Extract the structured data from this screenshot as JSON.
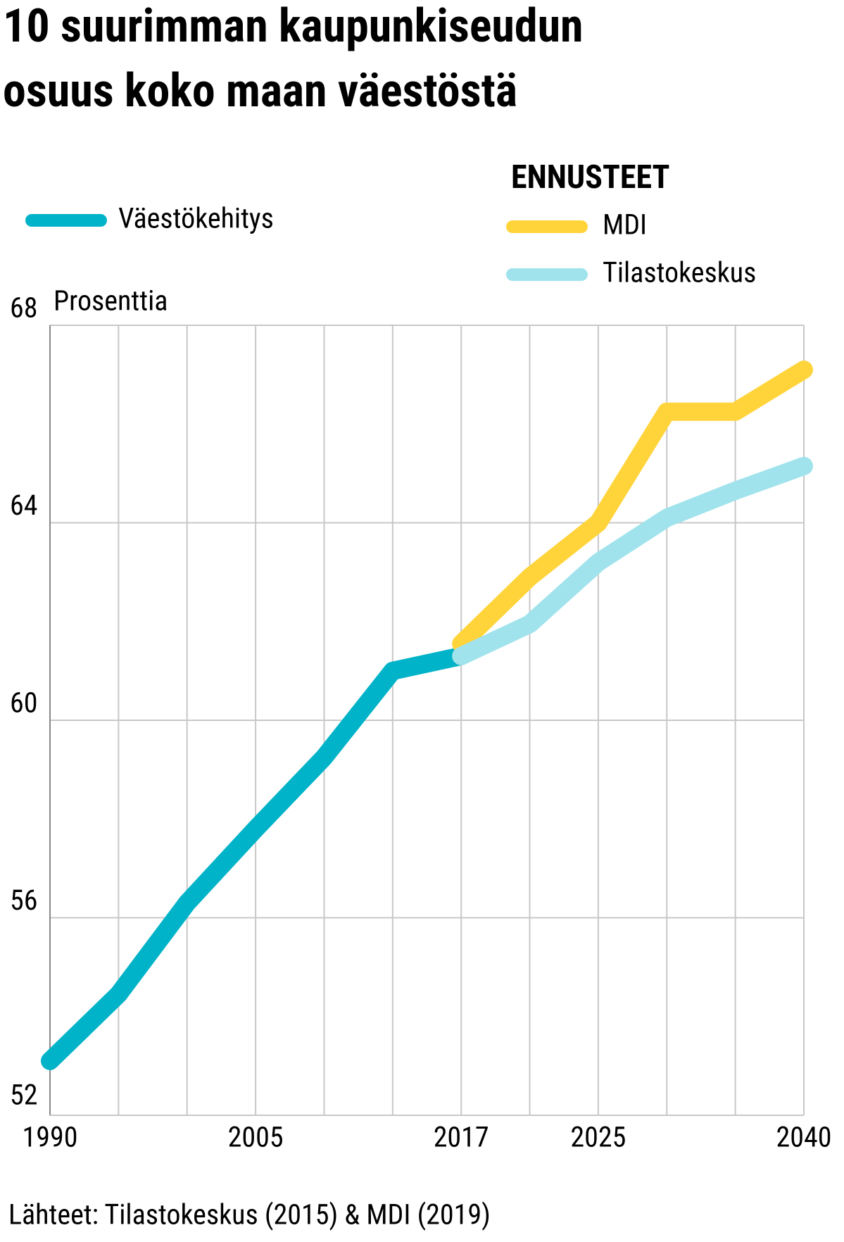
{
  "chart_data": {
    "type": "line",
    "title": "10 suurimman kaupunkiseudun osuus koko maan väestöstä",
    "y_label": "Prosenttia",
    "legend_group_title": "ENNUSTEET",
    "source": "Lähteet: Tilastokeskus (2015) & MDI (2019)",
    "categories": [
      "1990",
      null,
      null,
      "2005",
      null,
      null,
      "2017",
      null,
      "2025",
      null,
      null,
      "2040"
    ],
    "series": [
      {
        "name": "Väestökehitys",
        "color": "#00b3c8",
        "values": [
          53.1,
          54.45,
          56.3,
          57.8,
          59.25,
          61.0,
          61.3,
          null,
          null,
          null,
          null,
          null
        ]
      },
      {
        "name": "MDI",
        "color": "#ffd43b",
        "values": [
          null,
          null,
          null,
          null,
          null,
          null,
          61.55,
          62.9,
          64.0,
          66.25,
          66.25,
          67.1
        ]
      },
      {
        "name": "Tilastokeskus",
        "color": "#a0e3ec",
        "values": [
          null,
          null,
          null,
          null,
          null,
          null,
          61.3,
          61.95,
          63.2,
          64.1,
          64.65,
          65.15
        ]
      }
    ],
    "ylim": [
      52,
      68
    ],
    "yticks": [
      52,
      56,
      60,
      64,
      68
    ],
    "grid": true
  }
}
